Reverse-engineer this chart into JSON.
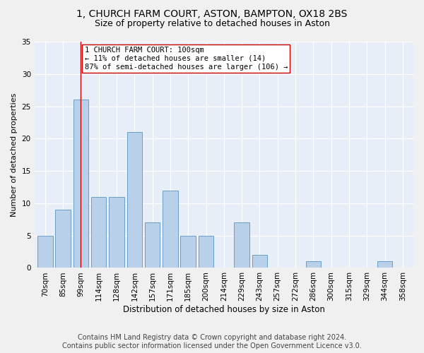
{
  "title": "1, CHURCH FARM COURT, ASTON, BAMPTON, OX18 2BS",
  "subtitle": "Size of property relative to detached houses in Aston",
  "xlabel": "Distribution of detached houses by size in Aston",
  "ylabel": "Number of detached properties",
  "bar_labels": [
    "70sqm",
    "85sqm",
    "99sqm",
    "114sqm",
    "128sqm",
    "142sqm",
    "157sqm",
    "171sqm",
    "185sqm",
    "200sqm",
    "214sqm",
    "229sqm",
    "243sqm",
    "257sqm",
    "272sqm",
    "286sqm",
    "300sqm",
    "315sqm",
    "329sqm",
    "344sqm",
    "358sqm"
  ],
  "bar_values": [
    5,
    9,
    26,
    11,
    11,
    21,
    7,
    12,
    5,
    5,
    0,
    7,
    2,
    0,
    0,
    1,
    0,
    0,
    0,
    1,
    0
  ],
  "bar_color": "#b8d0ea",
  "bar_edge_color": "#6a9fc8",
  "vline_x": 2,
  "vline_color": "#cc0000",
  "annotation_text": "1 CHURCH FARM COURT: 100sqm\n← 11% of detached houses are smaller (14)\n87% of semi-detached houses are larger (106) →",
  "annotation_box_color": "#ffffff",
  "annotation_box_edge": "#cc0000",
  "ylim": [
    0,
    35
  ],
  "yticks": [
    0,
    5,
    10,
    15,
    20,
    25,
    30,
    35
  ],
  "footer_line1": "Contains HM Land Registry data © Crown copyright and database right 2024.",
  "footer_line2": "Contains public sector information licensed under the Open Government Licence v3.0.",
  "bg_color": "#e8eef8",
  "grid_color": "#ffffff",
  "title_fontsize": 10,
  "subtitle_fontsize": 9,
  "xlabel_fontsize": 8.5,
  "ylabel_fontsize": 8,
  "tick_fontsize": 7.5,
  "footer_fontsize": 7,
  "annotation_fontsize": 7.5
}
